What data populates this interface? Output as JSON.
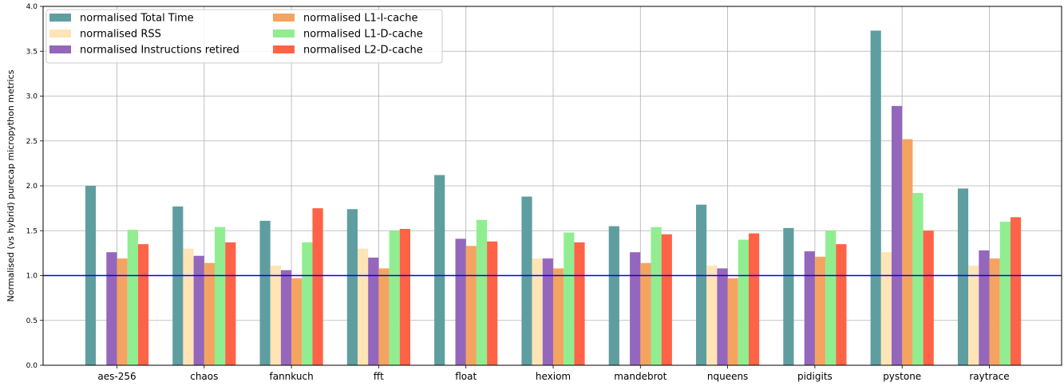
{
  "chart_data": {
    "type": "bar",
    "title": "",
    "xlabel": "",
    "ylabel": "Normalised (vs hybrid) purecap micropython metrics",
    "ylim": [
      0,
      4.0
    ],
    "yticks": [
      "0.0",
      "0.5",
      "1.0",
      "1.5",
      "2.0",
      "2.5",
      "3.0",
      "3.5",
      "4.0"
    ],
    "grid": true,
    "legend_position": "top-left",
    "reference_line": {
      "y": 1.0,
      "color": "#0000ff"
    },
    "categories": [
      "aes-256",
      "chaos",
      "fannkuch",
      "fft",
      "float",
      "hexiom",
      "mandebrot",
      "nqueens",
      "pidigits",
      "pystone",
      "raytrace"
    ],
    "series": [
      {
        "name": "normalised Total Time",
        "color": "#5f9ea0",
        "values": [
          2.0,
          1.77,
          1.61,
          1.74,
          2.12,
          1.88,
          1.55,
          1.79,
          1.53,
          3.73,
          1.97
        ]
      },
      {
        "name": "normalised RSS",
        "color": "#ffe4b5",
        "values": [
          null,
          1.3,
          1.11,
          1.3,
          null,
          1.19,
          null,
          1.11,
          null,
          1.26,
          1.11
        ]
      },
      {
        "name": "normalised Instructions retired",
        "color": "#9467bd",
        "values": [
          1.26,
          1.22,
          1.06,
          1.2,
          1.41,
          1.19,
          1.26,
          1.08,
          1.27,
          2.89,
          1.28
        ]
      },
      {
        "name": "normalised L1-I-cache",
        "color": "#f4a460",
        "values": [
          1.19,
          1.14,
          0.97,
          1.08,
          1.33,
          1.08,
          1.14,
          0.97,
          1.21,
          2.52,
          1.19
        ]
      },
      {
        "name": "normalised L1-D-cache",
        "color": "#90ee90",
        "values": [
          1.51,
          1.54,
          1.37,
          1.5,
          1.62,
          1.48,
          1.54,
          1.4,
          1.5,
          1.92,
          1.6
        ]
      },
      {
        "name": "normalised L2-D-cache",
        "color": "#ff6347",
        "values": [
          1.35,
          1.37,
          1.75,
          1.52,
          1.38,
          1.37,
          1.46,
          1.47,
          1.35,
          1.5,
          1.65
        ]
      }
    ]
  }
}
